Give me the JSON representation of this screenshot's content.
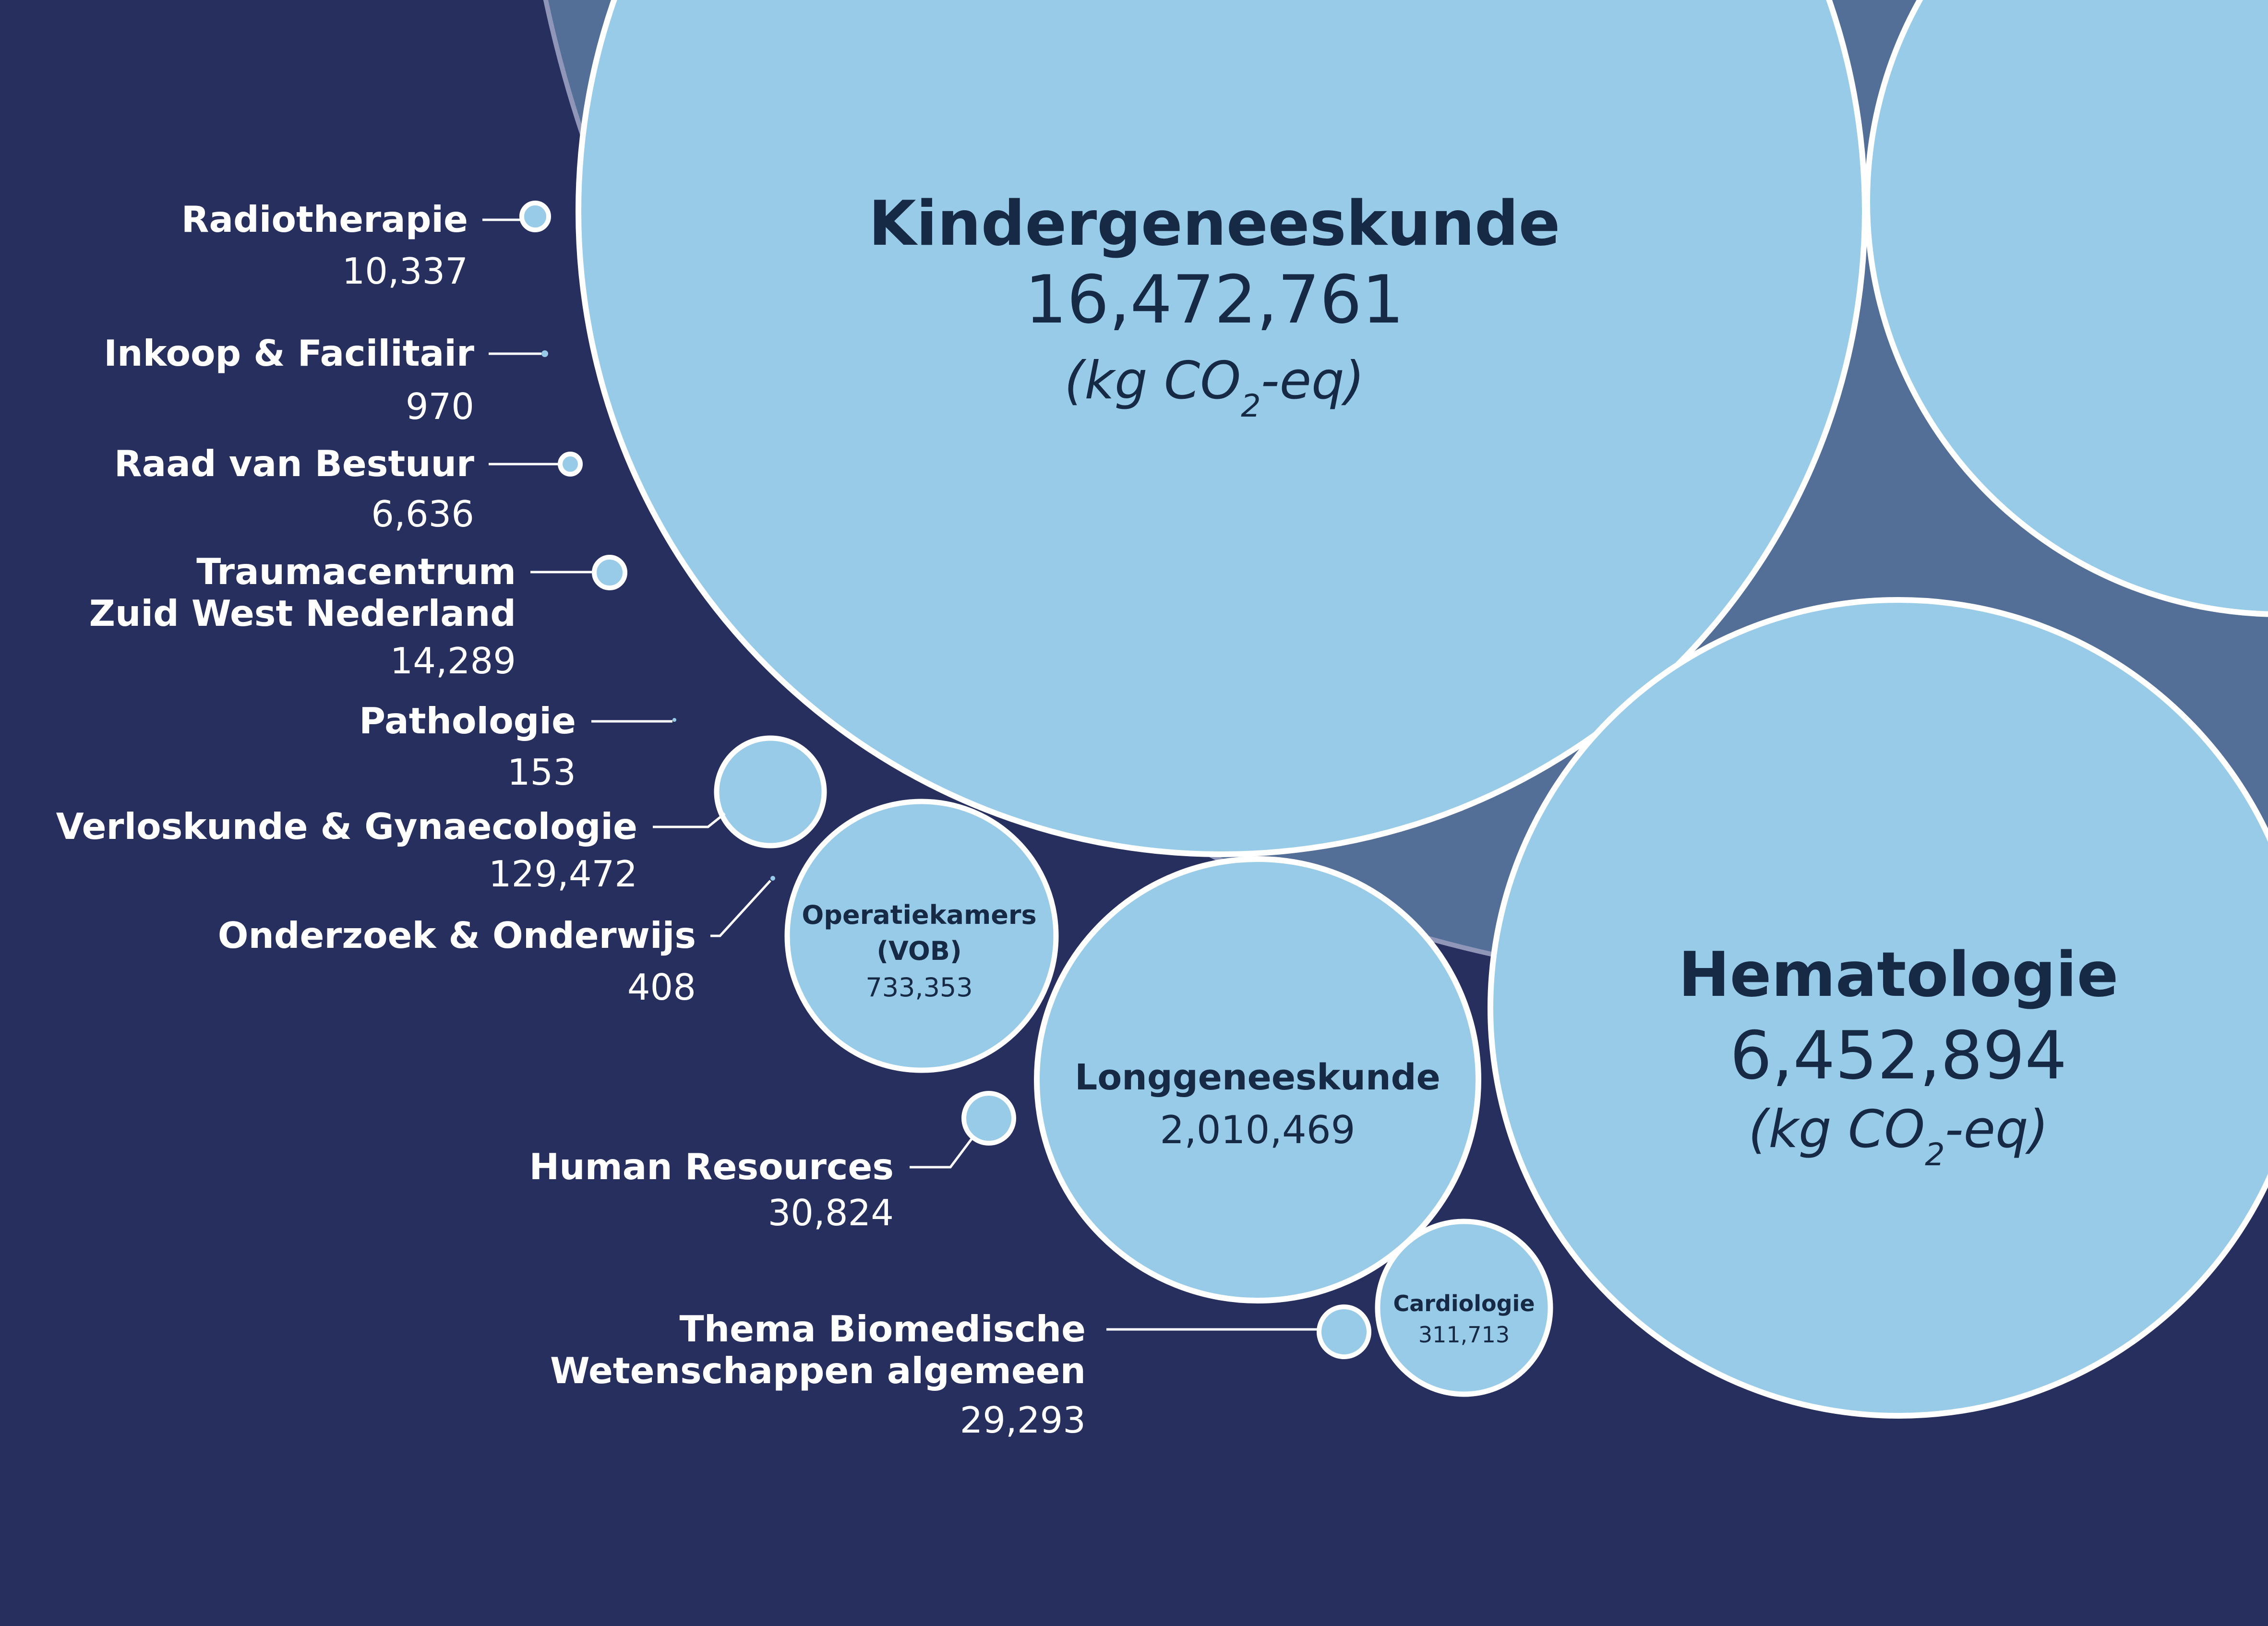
{
  "chart_data": {
    "type": "bubble",
    "title": "",
    "unit_label": "(kg CO2-eq)",
    "unit_label_parts": {
      "prefix": "(kg CO",
      "subscript": "2",
      "suffix": "-eq)"
    },
    "series": [
      {
        "name": "Kindergeneeskunde",
        "value": "16,472,761",
        "numeric": 16472761
      },
      {
        "name": "Hematologie",
        "value": "6,452,894",
        "numeric": 6452894
      },
      {
        "name": "Longgeneeskunde",
        "value": "2,010,469",
        "numeric": 2010469
      },
      {
        "name": "Operatiekamers (VOB)",
        "name_lines": [
          "Operatiekamers",
          "(VOB)"
        ],
        "value": "733,353",
        "numeric": 733353
      },
      {
        "name": "Cardiologie",
        "value": "311,713",
        "numeric": 311713
      },
      {
        "name": "Verloskunde & Gynaecologie",
        "value": "129,472",
        "numeric": 129472
      },
      {
        "name": "Human Resources",
        "value": "30,824",
        "numeric": 30824
      },
      {
        "name": "Thema Biomedische Wetenschappen algemeen",
        "name_lines": [
          "Thema Biomedische",
          "Wetenschappen algemeen"
        ],
        "value": "29,293",
        "numeric": 29293
      },
      {
        "name": "Traumacentrum Zuid West Nederland",
        "name_lines": [
          "Traumacentrum",
          "Zuid West Nederland"
        ],
        "value": "14,289",
        "numeric": 14289
      },
      {
        "name": "Radiotherapie",
        "value": "10,337",
        "numeric": 10337
      },
      {
        "name": "Raad van Bestuur",
        "value": "6,636",
        "numeric": 6636
      },
      {
        "name": "Inkoop & Facilitair",
        "value": "970",
        "numeric": 970
      },
      {
        "name": "Onderzoek & Onderwijs",
        "value": "408",
        "numeric": 408
      },
      {
        "name": "Pathologie",
        "value": "153",
        "numeric": 153
      }
    ],
    "colors": {
      "background": "#272f5f",
      "container": "#546f97",
      "container_edge": "#8f96b8",
      "bubble": "#97cbe8",
      "bubble_stroke": "#ffffff",
      "label_text": "#ffffff",
      "bubble_text": "#172a45"
    }
  }
}
